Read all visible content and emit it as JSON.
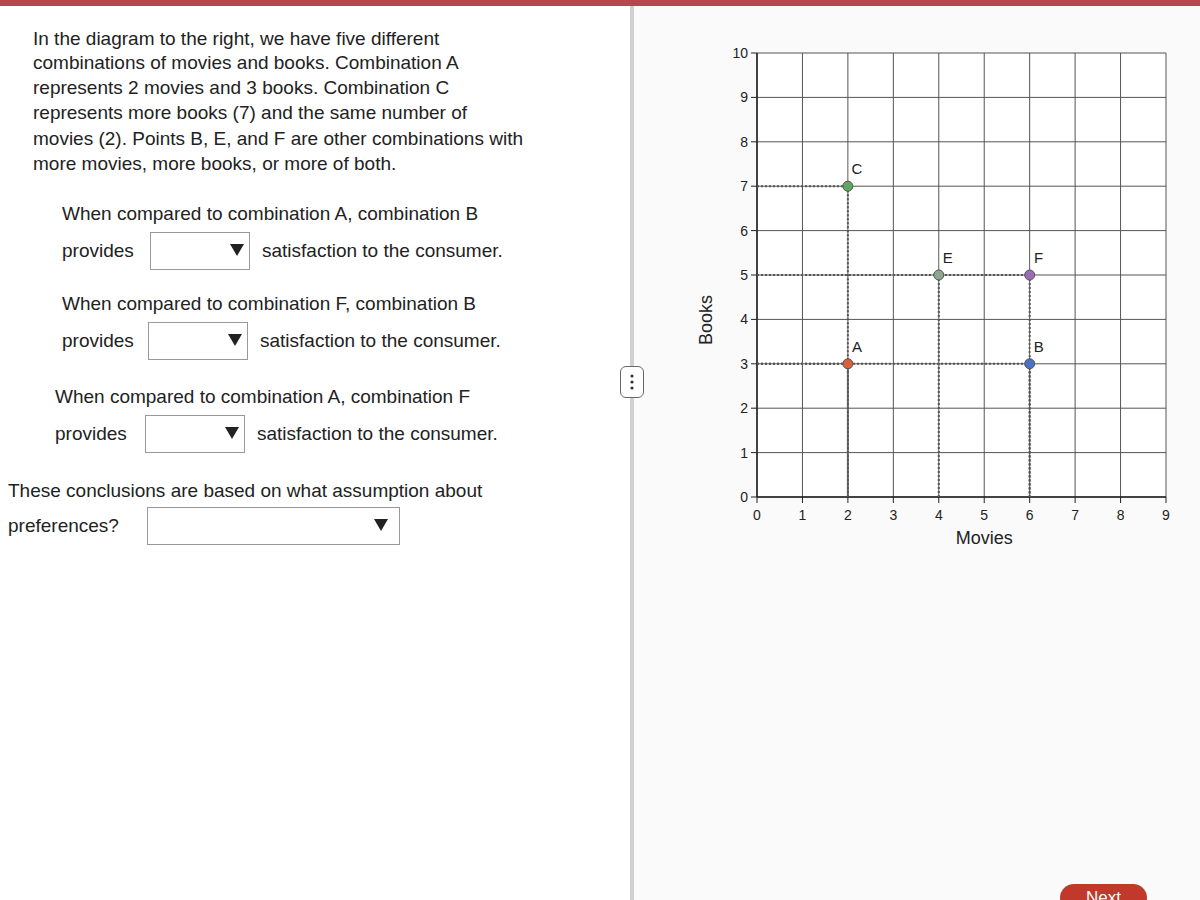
{
  "question": {
    "intro": [
      "In the diagram to the right, we have five different",
      "combinations of movies and books. Combination A",
      "represents 2 movies and 3 books. Combination C",
      "represents more books (7) and the same number of",
      "movies (2). Points B, E, and F are other combinations with",
      "more movies, more books, or more of both."
    ],
    "items": [
      {
        "lines": [
          "When compared to combination A, combination B",
          "provides"
        ],
        "after": "satisfaction to the consumer."
      },
      {
        "lines": [
          "When compared to combination F, combination B",
          "provides"
        ],
        "after": "satisfaction to the consumer."
      },
      {
        "lines": [
          "When compared to combination A, combination F",
          "provides"
        ],
        "after": "satisfaction to the consumer."
      },
      {
        "lines": [
          "These conclusions are based on what assumption about",
          "preferences?"
        ],
        "after": null
      }
    ],
    "next_button": "Next"
  },
  "chart_data": {
    "type": "scatter",
    "x_label": "Movies",
    "y_label": "Books",
    "x": [
      2,
      6,
      2,
      4,
      6
    ],
    "values": [
      3,
      3,
      7,
      5,
      5
    ],
    "point_labels": [
      "A",
      "B",
      "C",
      "E",
      "F"
    ],
    "colors": [
      "#d9603b",
      "#4a72c4",
      "#5fa85f",
      "#8ea68e",
      "#9b6bb5"
    ],
    "marker": "circle",
    "xlim": [
      0,
      9
    ],
    "xticks": [
      0,
      1,
      2,
      3,
      4,
      5,
      6,
      7,
      8,
      9
    ],
    "ylim": [
      0,
      10
    ],
    "yticks": [
      0,
      1,
      2,
      3,
      4,
      5,
      6,
      7,
      8,
      9,
      10
    ],
    "grid": true
  }
}
